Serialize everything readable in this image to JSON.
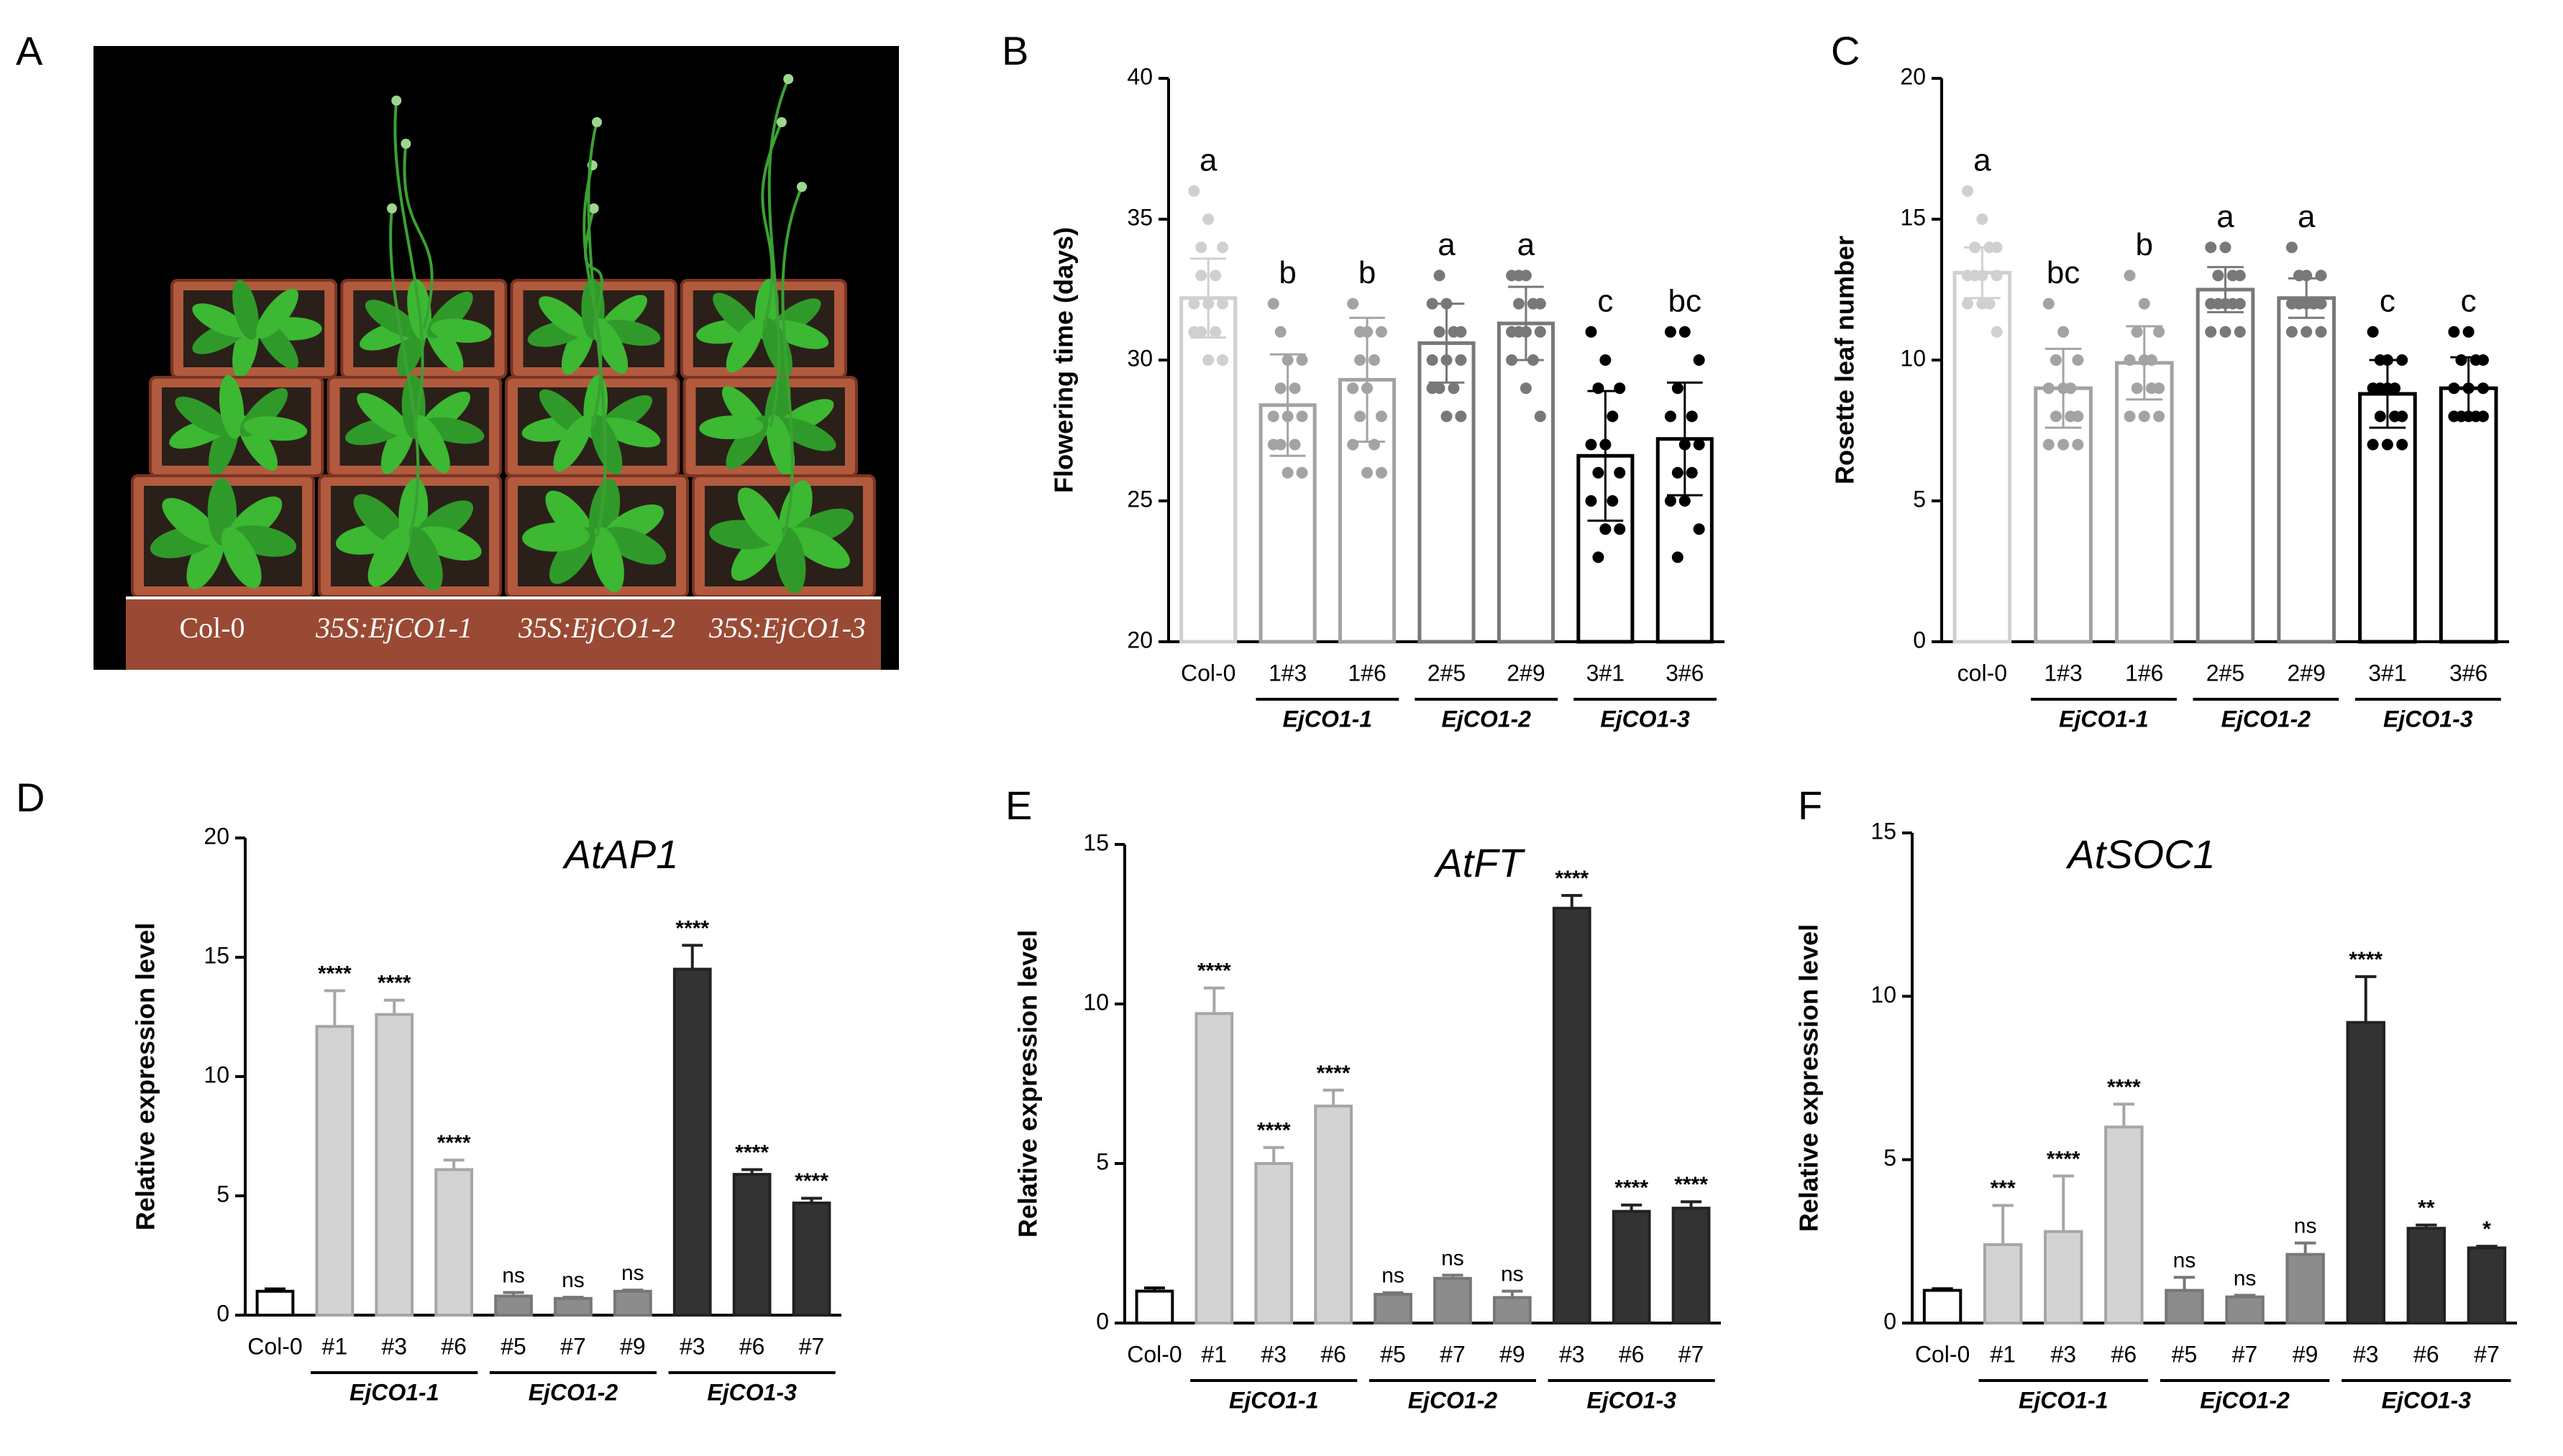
{
  "photo": {
    "label": "A",
    "captions": [
      "Col-0",
      "35S:EjCO1-1",
      "35S:EjCO1-2",
      "35S:EjCO1-3"
    ]
  },
  "chart_data": [
    {
      "type": "bar",
      "label": "B",
      "y_label": "Flowering time (days)",
      "categories": [
        "Col-0",
        "1#3",
        "1#6",
        "2#5",
        "2#9",
        "3#1",
        "3#6"
      ],
      "groups": [
        {
          "name": "EjCO1-1",
          "members": [
            1,
            2
          ]
        },
        {
          "name": "EjCO1-2",
          "members": [
            3,
            4
          ]
        },
        {
          "name": "EjCO1-3",
          "members": [
            5,
            6
          ]
        }
      ],
      "values": [
        32.2,
        28.4,
        29.3,
        30.6,
        31.3,
        26.6,
        27.2
      ],
      "errors": [
        1.4,
        1.8,
        2.2,
        1.4,
        1.3,
        2.3,
        2.0
      ],
      "points": [
        [
          36,
          35,
          34,
          33,
          33,
          32,
          32,
          32,
          31,
          31,
          31,
          30,
          30,
          34
        ],
        [
          32,
          30,
          30,
          29,
          29,
          28,
          28,
          28,
          27,
          27,
          27,
          26,
          26,
          31
        ],
        [
          32,
          31,
          31,
          30,
          30,
          29,
          29,
          28,
          28,
          27,
          27,
          26,
          26,
          31
        ],
        [
          32,
          32,
          31,
          31,
          31,
          30,
          30,
          30,
          29,
          29,
          29,
          28,
          28,
          33
        ],
        [
          33,
          33,
          32,
          32,
          32,
          31,
          31,
          31,
          31,
          30,
          30,
          29,
          28,
          33
        ],
        [
          31,
          30,
          29,
          29,
          28,
          27,
          27,
          26,
          26,
          25,
          25,
          24,
          24,
          23
        ],
        [
          31,
          31,
          30,
          29,
          28,
          28,
          27,
          27,
          26,
          26,
          25,
          25,
          24,
          23
        ]
      ],
      "annotations": [
        "a",
        "b",
        "b",
        "a",
        "a",
        "c",
        "bc"
      ],
      "colors": [
        "#d0d0d0",
        "#a3a3a3",
        "#a3a3a3",
        "#787878",
        "#787878",
        "#000000",
        "#000000"
      ],
      "filled": false,
      "ylim": [
        20,
        40
      ],
      "yticks": [
        20,
        25,
        30,
        35,
        40
      ]
    },
    {
      "type": "bar",
      "label": "C",
      "y_label": "Rosette leaf number",
      "categories": [
        "col-0",
        "1#3",
        "1#6",
        "2#5",
        "2#9",
        "3#1",
        "3#6"
      ],
      "groups": [
        {
          "name": "EjCO1-1",
          "members": [
            1,
            2
          ]
        },
        {
          "name": "EjCO1-2",
          "members": [
            3,
            4
          ]
        },
        {
          "name": "EjCO1-3",
          "members": [
            5,
            6
          ]
        }
      ],
      "values": [
        13.1,
        9.0,
        9.9,
        12.5,
        12.2,
        8.8,
        9.0
      ],
      "errors": [
        0.9,
        1.4,
        1.3,
        0.8,
        0.7,
        1.2,
        1.1
      ],
      "points": [
        [
          16,
          15,
          14,
          14,
          14,
          13,
          13,
          13,
          13,
          12,
          12,
          12,
          11,
          14
        ],
        [
          12,
          11,
          10,
          10,
          9,
          9,
          9,
          8,
          8,
          8,
          7,
          7,
          7,
          10
        ],
        [
          13,
          12,
          11,
          11,
          10,
          10,
          10,
          9,
          9,
          9,
          8,
          8,
          8,
          11
        ],
        [
          14,
          14,
          13,
          13,
          13,
          12,
          12,
          12,
          12,
          12,
          11,
          11,
          11,
          13
        ],
        [
          14,
          13,
          13,
          13,
          12,
          12,
          12,
          12,
          12,
          12,
          11,
          11,
          11,
          13
        ],
        [
          11,
          10,
          10,
          9,
          9,
          9,
          9,
          8,
          8,
          8,
          7,
          7,
          7,
          10
        ],
        [
          11,
          11,
          10,
          10,
          10,
          9,
          9,
          9,
          8,
          8,
          8,
          8,
          8,
          10
        ]
      ],
      "annotations": [
        "a",
        "bc",
        "b",
        "a",
        "a",
        "c",
        "c"
      ],
      "colors": [
        "#d0d0d0",
        "#a3a3a3",
        "#a3a3a3",
        "#787878",
        "#787878",
        "#000000",
        "#000000"
      ],
      "filled": false,
      "ylim": [
        0,
        20
      ],
      "yticks": [
        0,
        5,
        10,
        15,
        20
      ]
    },
    {
      "type": "bar",
      "label": "D",
      "title": "AtAP1",
      "y_label": "Relative expression level",
      "categories": [
        "Col-0",
        "#1",
        "#3",
        "#6",
        "#5",
        "#7",
        "#9",
        "#3",
        "#6",
        "#7"
      ],
      "groups": [
        {
          "name": "EjCO1-1",
          "members": [
            1,
            3
          ]
        },
        {
          "name": "EjCO1-2",
          "members": [
            4,
            6
          ]
        },
        {
          "name": "EjCO1-3",
          "members": [
            7,
            9
          ]
        }
      ],
      "values": [
        1.0,
        12.1,
        12.6,
        6.1,
        0.8,
        0.7,
        1.0,
        14.5,
        5.9,
        4.7
      ],
      "errors": [
        0.1,
        1.5,
        0.6,
        0.4,
        0.15,
        0.05,
        0.05,
        1.0,
        0.2,
        0.2
      ],
      "annotations": [
        null,
        "****",
        "****",
        "****",
        "ns",
        "ns",
        "ns",
        "****",
        "****",
        "****"
      ],
      "colors": [
        "#ffffff",
        "#d3d3d3",
        "#d3d3d3",
        "#d3d3d3",
        "#8c8c8c",
        "#8c8c8c",
        "#8c8c8c",
        "#333333",
        "#333333",
        "#333333"
      ],
      "edge_colors": [
        "#000000",
        "#a6a6a6",
        "#a6a6a6",
        "#a6a6a6",
        "#777777",
        "#777777",
        "#777777",
        "#222222",
        "#222222",
        "#222222"
      ],
      "filled": true,
      "ylim": [
        0,
        20
      ],
      "yticks": [
        0,
        5,
        10,
        15,
        20
      ]
    },
    {
      "type": "bar",
      "label": "E",
      "title": "AtFT",
      "y_label": "Relative expression level",
      "categories": [
        "Col-0",
        "#1",
        "#3",
        "#6",
        "#5",
        "#7",
        "#9",
        "#3",
        "#6",
        "#7"
      ],
      "groups": [
        {
          "name": "EjCO1-1",
          "members": [
            1,
            3
          ]
        },
        {
          "name": "EjCO1-2",
          "members": [
            4,
            6
          ]
        },
        {
          "name": "EjCO1-3",
          "members": [
            7,
            9
          ]
        }
      ],
      "values": [
        1.0,
        9.7,
        5.0,
        6.8,
        0.9,
        1.4,
        0.8,
        13.0,
        3.5,
        3.6
      ],
      "errors": [
        0.1,
        0.8,
        0.5,
        0.5,
        0.05,
        0.1,
        0.2,
        0.4,
        0.2,
        0.2
      ],
      "annotations": [
        null,
        "****",
        "****",
        "****",
        "ns",
        "ns",
        "ns",
        "****",
        "****",
        "****"
      ],
      "colors": [
        "#ffffff",
        "#d3d3d3",
        "#d3d3d3",
        "#d3d3d3",
        "#8c8c8c",
        "#8c8c8c",
        "#8c8c8c",
        "#333333",
        "#333333",
        "#333333"
      ],
      "edge_colors": [
        "#000000",
        "#a6a6a6",
        "#a6a6a6",
        "#a6a6a6",
        "#777777",
        "#777777",
        "#777777",
        "#222222",
        "#222222",
        "#222222"
      ],
      "filled": true,
      "ylim": [
        0,
        15
      ],
      "yticks": [
        0,
        5,
        10,
        15
      ]
    },
    {
      "type": "bar",
      "label": "F",
      "title": "AtSOC1",
      "y_label": "Relative expression level",
      "categories": [
        "Col-0",
        "#1",
        "#3",
        "#6",
        "#5",
        "#7",
        "#9",
        "#3",
        "#6",
        "#7"
      ],
      "groups": [
        {
          "name": "EjCO1-1",
          "members": [
            1,
            3
          ]
        },
        {
          "name": "EjCO1-2",
          "members": [
            4,
            6
          ]
        },
        {
          "name": "EjCO1-3",
          "members": [
            7,
            9
          ]
        }
      ],
      "values": [
        1.0,
        2.4,
        2.8,
        6.0,
        1.0,
        0.8,
        2.1,
        9.2,
        2.9,
        2.3
      ],
      "errors": [
        0.05,
        1.2,
        1.7,
        0.7,
        0.4,
        0.05,
        0.35,
        1.4,
        0.1,
        0.05
      ],
      "annotations": [
        null,
        "***",
        "****",
        "****",
        "ns",
        "ns",
        "ns",
        "****",
        "**",
        "*"
      ],
      "colors": [
        "#ffffff",
        "#d3d3d3",
        "#d3d3d3",
        "#d3d3d3",
        "#8c8c8c",
        "#8c8c8c",
        "#8c8c8c",
        "#333333",
        "#333333",
        "#333333"
      ],
      "edge_colors": [
        "#000000",
        "#a6a6a6",
        "#a6a6a6",
        "#a6a6a6",
        "#777777",
        "#777777",
        "#777777",
        "#222222",
        "#222222",
        "#222222"
      ],
      "filled": true,
      "ylim": [
        0,
        15
      ],
      "yticks": [
        0,
        5,
        10,
        15
      ]
    }
  ]
}
